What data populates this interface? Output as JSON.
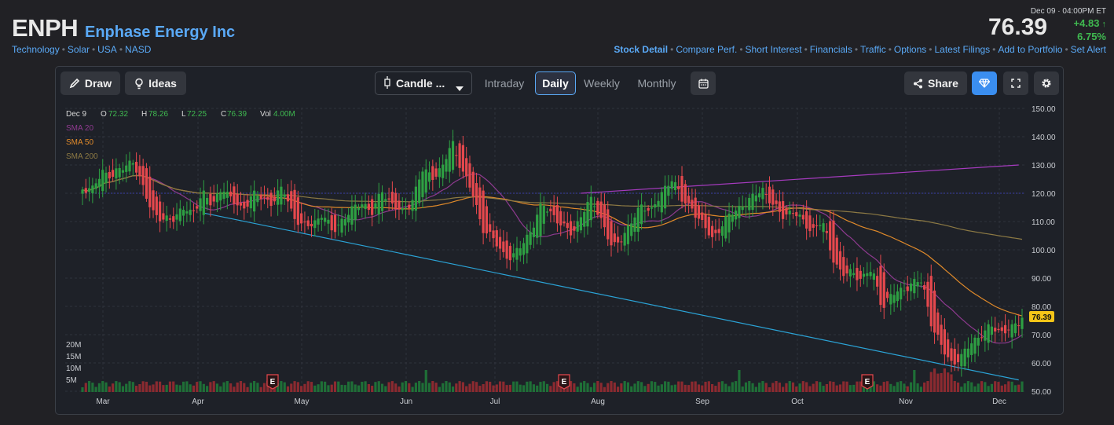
{
  "header": {
    "ticker": "ENPH",
    "company": "Enphase Energy Inc",
    "tags": [
      "Technology",
      "Solar",
      "USA",
      "NASD"
    ],
    "date": "Dec 09",
    "time": "04:00PM ET",
    "price": "76.39",
    "change": "+4.83",
    "change_pct": "6.75%",
    "up_color": "#3fb950",
    "links": [
      "Stock Detail",
      "Compare Perf.",
      "Short Interest",
      "Financials",
      "Traffic",
      "Options",
      "Latest Filings",
      "Add to Portfolio",
      "Set Alert"
    ]
  },
  "toolbar": {
    "draw": "Draw",
    "ideas": "Ideas",
    "chart_type": "Candle ...",
    "intervals": [
      "Intraday",
      "Daily",
      "Weekly",
      "Monthly"
    ],
    "active_interval": "Daily",
    "share": "Share"
  },
  "ohlc": {
    "date": "Dec 9",
    "o_label": "O",
    "o": "72.32",
    "h_label": "H",
    "h": "78.26",
    "l_label": "L",
    "l": "72.25",
    "c_label": "C",
    "c": "76.39",
    "vol_label": "Vol",
    "vol": "4.00M"
  },
  "legend": [
    {
      "name": "SMA 20",
      "color": "#8e3a8f"
    },
    {
      "name": "SMA 50",
      "color": "#e08a2a"
    },
    {
      "name": "SMA 200",
      "color": "#8d7a44"
    }
  ],
  "chart_data": {
    "type": "candlestick",
    "ylim": [
      50,
      150
    ],
    "y_ticks": [
      "150.00",
      "140.00",
      "130.00",
      "120.00",
      "110.00",
      "100.00",
      "90.00",
      "80.00",
      "70.00",
      "60.00",
      "50.00"
    ],
    "x_ticks": [
      "Mar",
      "Apr",
      "May",
      "Jun",
      "Jul",
      "Aug",
      "Sep",
      "Oct",
      "Nov",
      "Dec"
    ],
    "volume_ticks": [
      "20M",
      "15M",
      "10M",
      "5M"
    ],
    "last_price_label": "76.39",
    "last_price": 76.39,
    "horizontal_line": 120,
    "trendlines": [
      {
        "color": "#a63bbf",
        "from": {
          "day": 148,
          "price": 120
        },
        "to": {
          "day": 278,
          "price": 130
        }
      },
      {
        "color": "#2ba3d6",
        "from": {
          "day": 36,
          "price": 113
        },
        "to": {
          "day": 278,
          "price": 54
        }
      }
    ],
    "earnings_markers": [
      "E",
      "E",
      "E"
    ],
    "up_color": "#2ea043",
    "down_color": "#e5484d",
    "candles": [
      [
        119,
        123,
        117,
        122
      ],
      [
        122,
        127,
        120,
        121
      ],
      [
        121,
        131,
        118,
        128
      ],
      [
        128,
        132,
        125,
        126
      ],
      [
        126,
        130,
        123,
        129
      ],
      [
        129,
        135,
        127,
        132
      ],
      [
        132,
        134,
        120,
        122
      ],
      [
        122,
        124,
        112,
        114
      ],
      [
        114,
        118,
        108,
        110
      ],
      [
        110,
        113,
        107,
        111
      ],
      [
        111,
        117,
        109,
        115
      ],
      [
        115,
        119,
        110,
        112
      ],
      [
        112,
        124,
        111,
        121
      ],
      [
        121,
        125,
        113,
        115
      ],
      [
        115,
        127,
        113,
        123
      ],
      [
        123,
        125,
        113,
        117
      ],
      [
        117,
        121,
        112,
        114
      ],
      [
        114,
        123,
        113,
        120
      ],
      [
        120,
        124,
        116,
        118
      ],
      [
        118,
        123,
        115,
        117
      ],
      [
        117,
        126,
        115,
        122
      ],
      [
        122,
        124,
        111,
        113
      ],
      [
        113,
        117,
        105,
        108
      ],
      [
        108,
        112,
        98,
        109
      ],
      [
        109,
        115,
        106,
        113
      ],
      [
        113,
        114,
        104,
        106
      ],
      [
        106,
        113,
        104,
        111
      ],
      [
        111,
        117,
        108,
        114
      ],
      [
        114,
        121,
        112,
        117
      ],
      [
        117,
        120,
        112,
        113
      ],
      [
        113,
        124,
        111,
        121
      ],
      [
        121,
        124,
        114,
        116
      ],
      [
        116,
        119,
        111,
        113
      ],
      [
        113,
        122,
        112,
        118
      ],
      [
        118,
        130,
        116,
        128
      ],
      [
        128,
        132,
        124,
        126
      ],
      [
        126,
        134,
        122,
        129
      ],
      [
        129,
        142,
        127,
        138
      ],
      [
        138,
        139,
        124,
        128
      ],
      [
        128,
        130,
        118,
        120
      ],
      [
        120,
        122,
        105,
        108
      ],
      [
        108,
        110,
        101,
        104
      ],
      [
        104,
        107,
        97,
        99
      ],
      [
        99,
        103,
        94,
        97
      ],
      [
        97,
        104,
        95,
        102
      ],
      [
        102,
        110,
        100,
        108
      ],
      [
        108,
        118,
        106,
        116
      ],
      [
        116,
        121,
        111,
        113
      ],
      [
        113,
        116,
        106,
        108
      ],
      [
        108,
        112,
        103,
        106
      ],
      [
        106,
        116,
        104,
        113
      ],
      [
        113,
        120,
        110,
        118
      ],
      [
        118,
        121,
        108,
        110
      ],
      [
        110,
        113,
        96,
        100
      ],
      [
        100,
        107,
        97,
        105
      ],
      [
        105,
        112,
        103,
        110
      ],
      [
        110,
        118,
        108,
        116
      ],
      [
        116,
        120,
        112,
        114
      ],
      [
        114,
        122,
        112,
        120
      ],
      [
        120,
        128,
        118,
        126
      ],
      [
        126,
        127,
        115,
        117
      ],
      [
        117,
        121,
        112,
        115
      ],
      [
        115,
        117,
        106,
        109
      ],
      [
        109,
        112,
        99,
        104
      ],
      [
        104,
        111,
        101,
        109
      ],
      [
        109,
        115,
        106,
        113
      ],
      [
        113,
        118,
        110,
        116
      ],
      [
        116,
        123,
        113,
        118
      ],
      [
        118,
        126,
        115,
        122
      ],
      [
        122,
        125,
        114,
        116
      ],
      [
        116,
        118,
        108,
        112
      ],
      [
        112,
        116,
        106,
        114
      ],
      [
        114,
        117,
        107,
        110
      ],
      [
        110,
        113,
        104,
        107
      ],
      [
        107,
        112,
        104,
        110
      ],
      [
        110,
        111,
        96,
        98
      ],
      [
        98,
        100,
        89,
        91
      ],
      [
        91,
        95,
        88,
        92
      ],
      [
        92,
        94,
        89,
        90
      ],
      [
        90,
        95,
        86,
        93
      ],
      [
        93,
        96,
        78,
        80
      ],
      [
        80,
        86,
        78,
        84
      ],
      [
        84,
        88,
        81,
        86
      ],
      [
        86,
        91,
        82,
        88
      ],
      [
        88,
        92,
        83,
        89
      ],
      [
        89,
        90,
        71,
        73
      ],
      [
        73,
        76,
        62,
        65
      ],
      [
        65,
        67,
        58,
        60
      ],
      [
        60,
        64,
        58,
        62
      ],
      [
        62,
        70,
        60,
        68
      ],
      [
        68,
        72,
        66,
        70
      ],
      [
        70,
        75,
        68,
        73
      ],
      [
        73,
        74,
        69,
        71
      ],
      [
        71,
        73,
        70,
        72
      ],
      [
        72,
        78,
        72,
        76
      ]
    ]
  }
}
